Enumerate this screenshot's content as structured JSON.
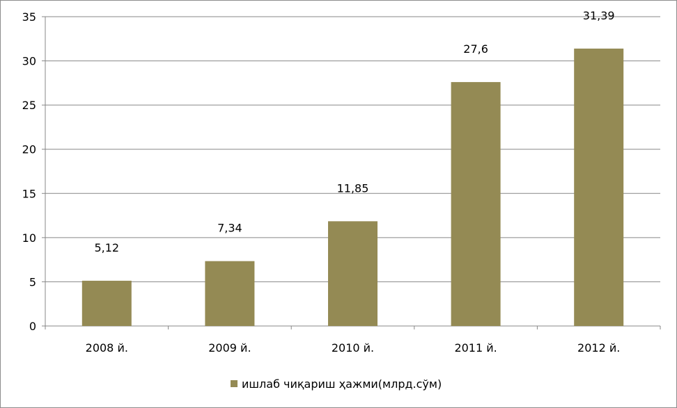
{
  "chart_data": {
    "type": "bar",
    "categories": [
      "2008 й.",
      "2009 й.",
      "2010 й.",
      "2011 й.",
      "2012 й."
    ],
    "series": [
      {
        "name": "ишлаб чиқариш ҳажми(млрд.сўм)",
        "values": [
          5.12,
          7.34,
          11.85,
          27.6,
          31.39
        ],
        "data_labels": [
          "5,12",
          "7,34",
          "11,85",
          "27,6",
          "31,39"
        ],
        "color": "#948A54"
      }
    ],
    "ylim": [
      0,
      35
    ],
    "yticks": [
      0,
      5,
      10,
      15,
      20,
      25,
      30,
      35
    ],
    "grid": true,
    "legend": "bottom",
    "title": "",
    "xlabel": "",
    "ylabel": ""
  }
}
